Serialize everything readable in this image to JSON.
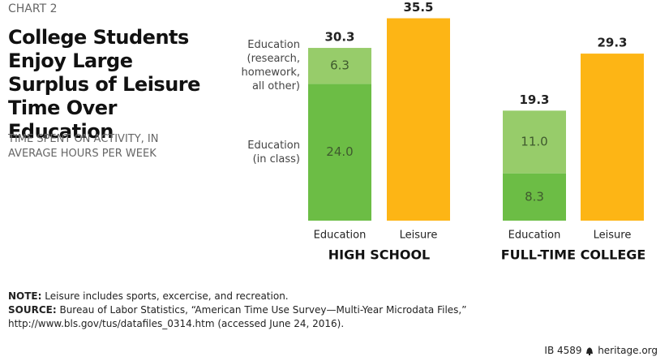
{
  "chart_data": {
    "type": "stacked-bar",
    "label": "CHART 2",
    "title": "College Students Enjoy Large Surplus of Leisure Time Over Education",
    "subtitle": "TIME SPENT ON ACTIVITY, IN AVERAGE HOURS PER WEEK",
    "groups": [
      "HIGH SCHOOL",
      "FULL-TIME COLLEGE"
    ],
    "categories": [
      "Education",
      "Leisure",
      "Education",
      "Leisure"
    ],
    "series": [
      {
        "name": "Education\n(in class)",
        "color": "#6cbd45",
        "values": [
          24.0,
          null,
          8.3,
          null
        ],
        "value_labels": [
          "24.0",
          null,
          "8.3",
          null
        ]
      },
      {
        "name": "Education\n(research,\nhomework,\nall other)",
        "color": "#97cc6a",
        "values": [
          6.3,
          null,
          11.0,
          null
        ],
        "value_labels": [
          "6.3",
          null,
          "11.0",
          null
        ]
      },
      {
        "color": "#fdb515",
        "values": [
          null,
          35.5,
          null,
          29.3
        ]
      }
    ],
    "totals": [
      30.3,
      35.5,
      19.3,
      29.3
    ],
    "ylim": [
      0,
      36
    ]
  },
  "notes": {
    "note_label": "NOTE:",
    "note": "Leisure includes sports, excercise, and recreation.",
    "source_label": "SOURCE:",
    "source": "Bureau of Labor Statistics, “American Time Use Survey—Multi-Year Microdata Files,” http://www.bls.gov/tus/datafiles_0314.htm (accessed June 24, 2016)."
  },
  "footer": {
    "id": "IB 4589",
    "site": "heritage.org"
  }
}
